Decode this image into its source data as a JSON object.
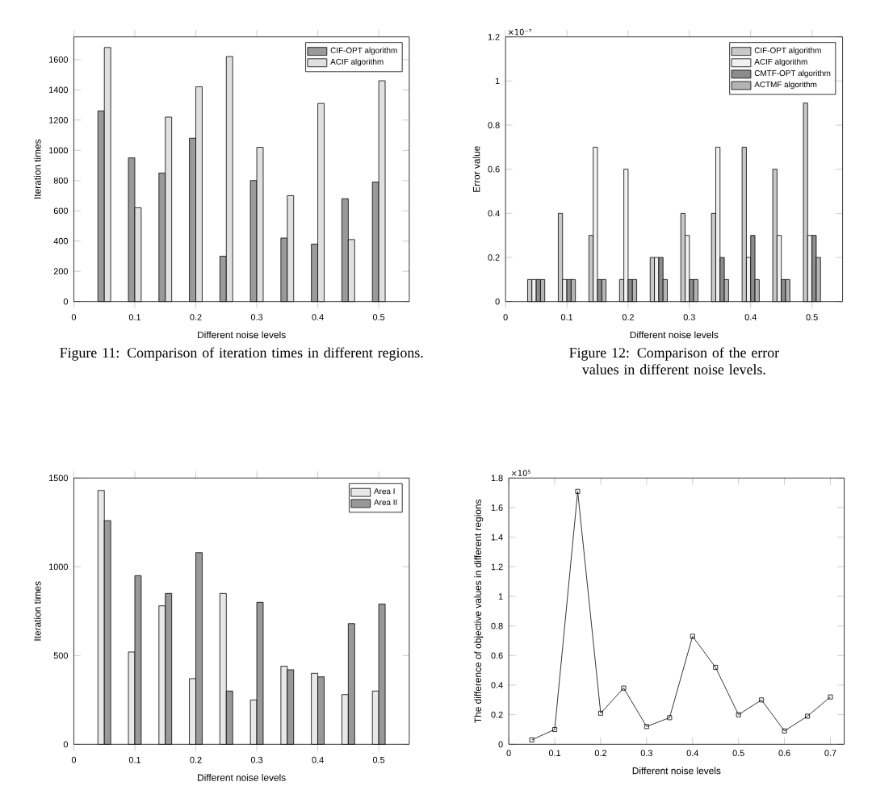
{
  "chart_data": [
    {
      "type": "bar",
      "xlabel": "Different noise levels",
      "ylabel": "Iteration times",
      "x": [
        0.05,
        0.1,
        0.15,
        0.2,
        0.25,
        0.3,
        0.35,
        0.4,
        0.45,
        0.5
      ],
      "xlim": [
        0,
        0.55
      ],
      "ylim": [
        0,
        1750
      ],
      "xticks": [
        0,
        0.1,
        0.2,
        0.3,
        0.4,
        0.5
      ],
      "yticks": [
        0,
        200,
        400,
        600,
        800,
        1000,
        1200,
        1400,
        1600
      ],
      "legend": "top right",
      "series": [
        {
          "name": "CIF-OPT algorithm",
          "color": "#9a9a9a",
          "values": [
            1260,
            950,
            850,
            1080,
            300,
            800,
            420,
            380,
            680,
            790
          ]
        },
        {
          "name": "ACIF algorithm",
          "color": "#e0e0e0",
          "values": [
            1680,
            620,
            1220,
            1420,
            1620,
            1020,
            700,
            1310,
            410,
            1460
          ]
        }
      ],
      "annotations": [
        "Figure 11: Comparison of iteration times in different regions."
      ]
    },
    {
      "type": "bar",
      "xlabel": "Different noise levels",
      "ylabel": "Error value",
      "x": [
        0.05,
        0.1,
        0.15,
        0.2,
        0.25,
        0.3,
        0.35,
        0.4,
        0.45,
        0.5
      ],
      "xlim": [
        0,
        0.55
      ],
      "ylim": [
        0,
        1.2
      ],
      "xticks": [
        0,
        0.1,
        0.2,
        0.3,
        0.4,
        0.5
      ],
      "yticks": [
        0,
        0.2,
        0.4,
        0.6,
        0.8,
        1,
        1.2
      ],
      "legend": "top right",
      "series": [
        {
          "name": "CIF-OPT algorithm",
          "color": "#c8c8c8",
          "values": [
            0.1,
            0.4,
            0.3,
            0.1,
            0.2,
            0.4,
            0.4,
            0.7,
            0.6,
            0.9
          ]
        },
        {
          "name": "ACIF algorithm",
          "color": "#f0f0f0",
          "values": [
            0.1,
            0.1,
            0.7,
            0.6,
            0.2,
            0.3,
            0.7,
            0.2,
            0.3,
            0.3
          ]
        },
        {
          "name": "CMTF-OPT algorithm",
          "color": "#8c8c8c",
          "values": [
            0.1,
            0.1,
            0.1,
            0.1,
            0.2,
            0.1,
            0.2,
            0.3,
            0.1,
            0.3
          ]
        },
        {
          "name": "ACTMF algorithm",
          "color": "#b4b4b4",
          "values": [
            0.1,
            0.1,
            0.1,
            0.1,
            0.1,
            0.1,
            0.1,
            0.1,
            0.1,
            0.2
          ]
        }
      ],
      "annotations": [
        "×10⁻⁷",
        "Figure 12: Comparison of the error values in different noise levels."
      ]
    },
    {
      "type": "bar",
      "xlabel": "Different noise levels",
      "ylabel": "Iteration times",
      "x": [
        0.05,
        0.1,
        0.15,
        0.2,
        0.25,
        0.3,
        0.35,
        0.4,
        0.45,
        0.5
      ],
      "xlim": [
        0,
        0.55
      ],
      "ylim": [
        0,
        1500
      ],
      "xticks": [
        0,
        0.1,
        0.2,
        0.3,
        0.4,
        0.5
      ],
      "yticks": [
        0,
        500,
        1000,
        1500
      ],
      "legend": "top right",
      "series": [
        {
          "name": "Area I",
          "color": "#e8e8e8",
          "values": [
            1430,
            520,
            780,
            370,
            850,
            250,
            440,
            400,
            280,
            300
          ]
        },
        {
          "name": "Area II",
          "color": "#999999",
          "values": [
            1260,
            950,
            850,
            1080,
            300,
            800,
            420,
            380,
            680,
            790
          ]
        }
      ]
    },
    {
      "type": "line",
      "xlabel": "Different noise levels",
      "ylabel": "The difference of objective values in different regions",
      "x": [
        0.05,
        0.1,
        0.15,
        0.2,
        0.25,
        0.3,
        0.35,
        0.4,
        0.45,
        0.5,
        0.55,
        0.6,
        0.65,
        0.7
      ],
      "xlim": [
        0,
        0.73
      ],
      "ylim": [
        0,
        1.8
      ],
      "xticks": [
        0,
        0.1,
        0.2,
        0.3,
        0.4,
        0.5,
        0.6,
        0.7
      ],
      "yticks": [
        0,
        0.2,
        0.4,
        0.6,
        0.8,
        1,
        1.2,
        1.4,
        1.6,
        1.8
      ],
      "marker": "square",
      "series": [
        {
          "color": "#000000",
          "values": [
            0.03,
            0.1,
            1.71,
            0.21,
            0.38,
            0.12,
            0.18,
            0.73,
            0.52,
            0.2,
            0.3,
            0.09,
            0.19,
            0.32
          ]
        }
      ],
      "annotations": [
        "×10⁵"
      ]
    }
  ]
}
